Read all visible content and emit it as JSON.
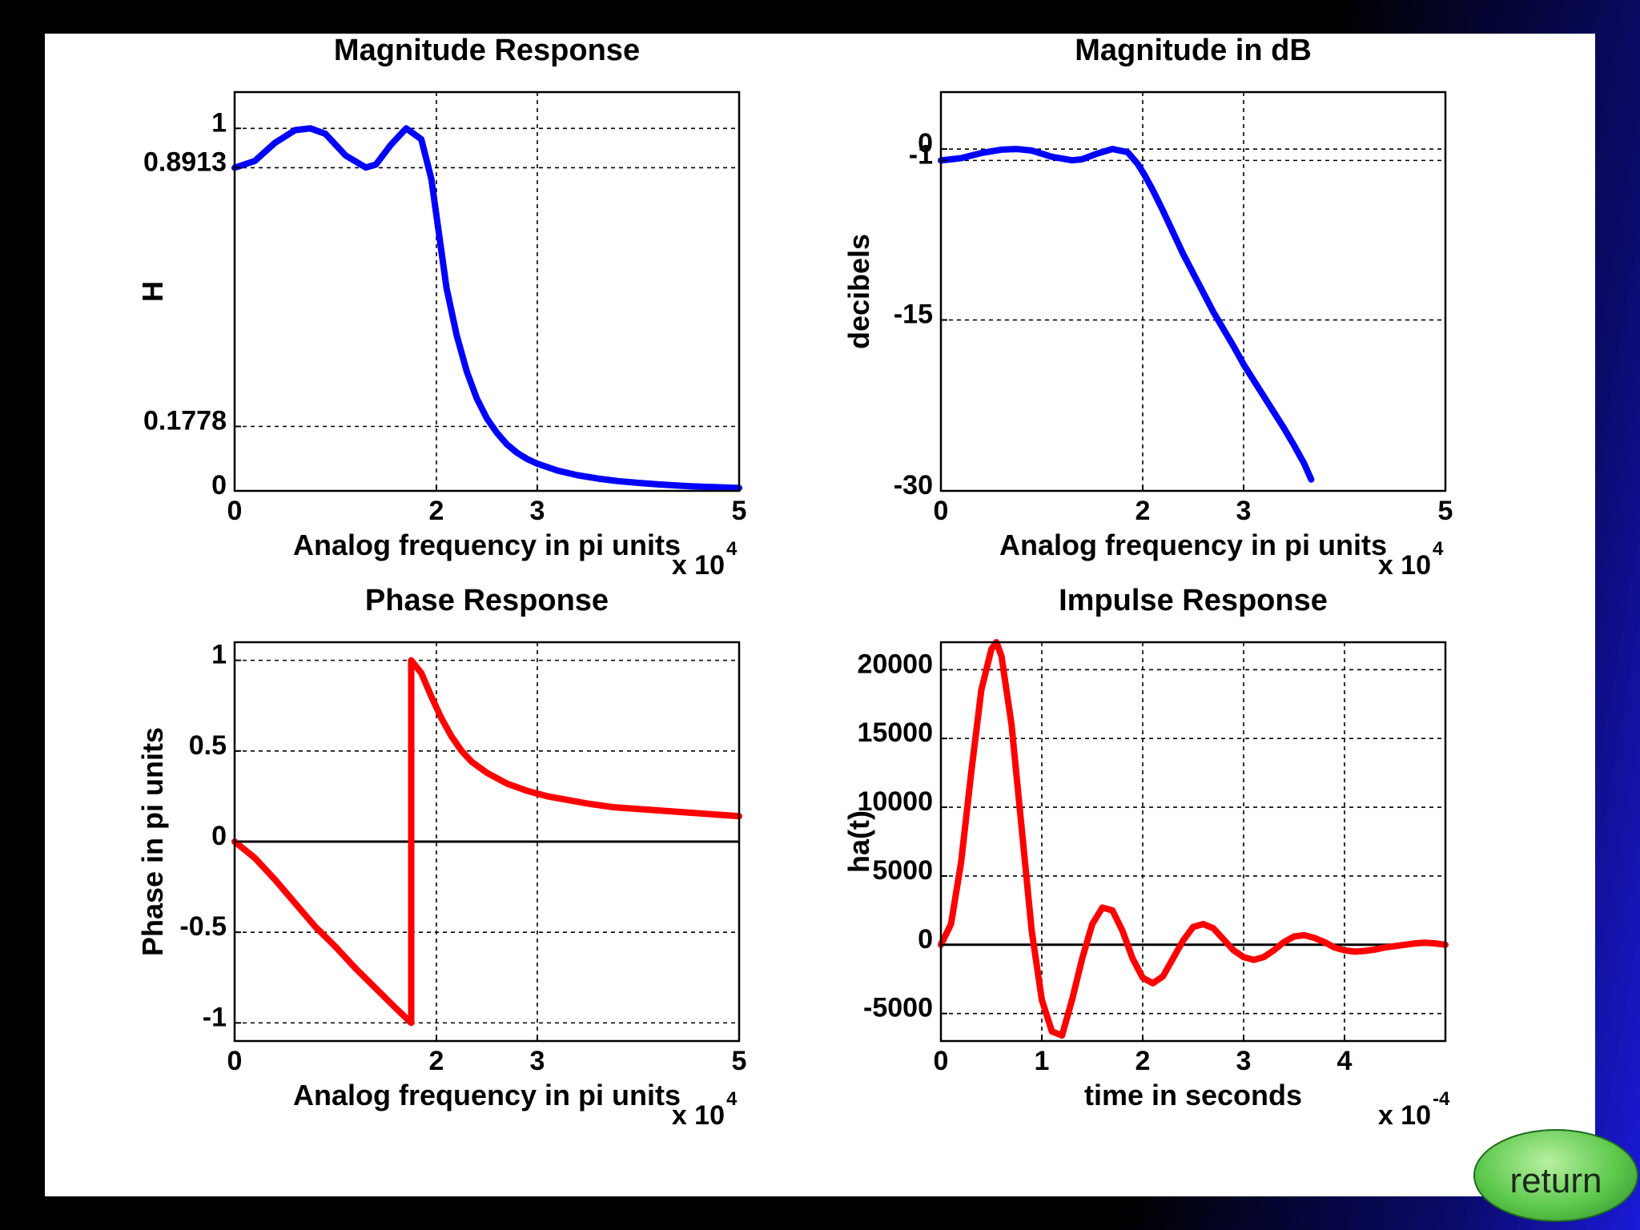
{
  "return_label": "return",
  "chart_data": [
    {
      "type": "line",
      "title": "Magnitude Response",
      "xlabel": "Analog frequency in pi units",
      "ylabel": "H",
      "x_multiplier": "x 10",
      "x_multiplier_exp": "4",
      "xlim": [
        0,
        50000
      ],
      "ylim": [
        0,
        1.1
      ],
      "xticks": [
        {
          "v": 0,
          "label": "0"
        },
        {
          "v": 20000,
          "label": "2"
        },
        {
          "v": 30000,
          "label": "3"
        },
        {
          "v": 50000,
          "label": "5"
        }
      ],
      "yticks": [
        {
          "v": 0,
          "label": "0"
        },
        {
          "v": 0.1778,
          "label": "0.1778"
        },
        {
          "v": 0.8913,
          "label": "0.8913"
        },
        {
          "v": 1,
          "label": "1"
        }
      ],
      "grid": true,
      "series": [
        {
          "color": "#0000ff",
          "x": [
            0,
            2000,
            4000,
            6000,
            7500,
            9000,
            11000,
            13000,
            14000,
            15500,
            17000,
            18500,
            19500,
            20200,
            21000,
            22000,
            23000,
            24000,
            25000,
            26000,
            27000,
            28000,
            29000,
            30000,
            32000,
            34000,
            36000,
            38000,
            40000,
            42000,
            45000,
            48000,
            50000
          ],
          "y": [
            0.8913,
            0.91,
            0.96,
            0.995,
            1.0,
            0.985,
            0.925,
            0.892,
            0.9,
            0.955,
            1.0,
            0.97,
            0.86,
            0.72,
            0.56,
            0.43,
            0.33,
            0.255,
            0.2,
            0.16,
            0.128,
            0.105,
            0.088,
            0.075,
            0.056,
            0.043,
            0.034,
            0.027,
            0.022,
            0.018,
            0.013,
            0.01,
            0.008
          ]
        }
      ]
    },
    {
      "type": "line",
      "title": "Magnitude in dB",
      "xlabel": "Analog frequency in pi units",
      "ylabel": "decibels",
      "x_multiplier": "x 10",
      "x_multiplier_exp": "4",
      "xlim": [
        0,
        50000
      ],
      "ylim": [
        -30,
        5
      ],
      "xticks": [
        {
          "v": 0,
          "label": "0"
        },
        {
          "v": 20000,
          "label": "2"
        },
        {
          "v": 30000,
          "label": "3"
        },
        {
          "v": 50000,
          "label": "5"
        }
      ],
      "yticks": [
        {
          "v": -30,
          "label": "-30"
        },
        {
          "v": -15,
          "label": "-15"
        },
        {
          "v": -1,
          "label": "-1"
        },
        {
          "v": 0,
          "label": "0"
        }
      ],
      "grid": true,
      "series": [
        {
          "color": "#0000ff",
          "x": [
            0,
            2000,
            4000,
            6000,
            7500,
            9000,
            11000,
            13000,
            14000,
            15500,
            17000,
            18500,
            19500,
            20200,
            21000,
            22000,
            23000,
            24000,
            25000,
            26000,
            27000,
            28000,
            29000,
            30000,
            31000,
            32000,
            33000,
            34000,
            35000,
            36000,
            36700
          ],
          "y": [
            -1,
            -0.8,
            -0.35,
            -0.05,
            0,
            -0.13,
            -0.68,
            -0.99,
            -0.9,
            -0.4,
            0,
            -0.27,
            -1.3,
            -2.3,
            -3.6,
            -5.4,
            -7.3,
            -9.2,
            -10.9,
            -12.6,
            -14.3,
            -15.8,
            -17.3,
            -18.9,
            -20.3,
            -21.7,
            -23.1,
            -24.5,
            -26.0,
            -27.6,
            -29.0
          ]
        }
      ]
    },
    {
      "type": "line",
      "title": "Phase Response",
      "xlabel": "Analog frequency in pi units",
      "ylabel": "Phase in pi units",
      "x_multiplier": "x 10",
      "x_multiplier_exp": "4",
      "xlim": [
        0,
        50000
      ],
      "ylim": [
        -1.1,
        1.1
      ],
      "xticks": [
        {
          "v": 0,
          "label": "0"
        },
        {
          "v": 20000,
          "label": "2"
        },
        {
          "v": 30000,
          "label": "3"
        },
        {
          "v": 50000,
          "label": "5"
        }
      ],
      "yticks": [
        {
          "v": -1,
          "label": "-1"
        },
        {
          "v": -0.5,
          "label": "-0.5"
        },
        {
          "v": 0,
          "label": "0"
        },
        {
          "v": 0.5,
          "label": "0.5"
        },
        {
          "v": 1,
          "label": "1"
        }
      ],
      "grid": true,
      "zero_line": true,
      "series": [
        {
          "color": "#ff0000",
          "x": [
            0,
            2000,
            4000,
            6000,
            8000,
            10000,
            12000,
            14000,
            16000,
            17500,
            17500,
            18500,
            19500,
            20500,
            21500,
            22500,
            23500,
            25000,
            27000,
            29000,
            31000,
            33000,
            35000,
            37500,
            40000,
            42500,
            45000,
            47500,
            50000
          ],
          "y": [
            0,
            -0.09,
            -0.21,
            -0.34,
            -0.47,
            -0.58,
            -0.7,
            -0.81,
            -0.92,
            -1.0,
            1.0,
            0.93,
            0.8,
            0.68,
            0.58,
            0.5,
            0.44,
            0.38,
            0.32,
            0.28,
            0.25,
            0.23,
            0.21,
            0.19,
            0.18,
            0.17,
            0.16,
            0.15,
            0.14
          ]
        }
      ]
    },
    {
      "type": "line",
      "title": "Impulse Response",
      "xlabel": "time in seconds",
      "ylabel": "ha(t)",
      "x_multiplier": "x 10",
      "x_multiplier_exp": "-4",
      "xlim": [
        0,
        0.0005
      ],
      "ylim": [
        -7000,
        22000
      ],
      "xticks": [
        {
          "v": 0,
          "label": "0"
        },
        {
          "v": 0.0001,
          "label": "1"
        },
        {
          "v": 0.0002,
          "label": "2"
        },
        {
          "v": 0.0003,
          "label": "3"
        },
        {
          "v": 0.0004,
          "label": "4"
        }
      ],
      "yticks": [
        {
          "v": -5000,
          "label": "-5000"
        },
        {
          "v": 0,
          "label": "0"
        },
        {
          "v": 5000,
          "label": "5000"
        },
        {
          "v": 10000,
          "label": "10000"
        },
        {
          "v": 15000,
          "label": "15000"
        },
        {
          "v": 20000,
          "label": "20000"
        }
      ],
      "grid": true,
      "zero_line": true,
      "series": [
        {
          "color": "#ff0000",
          "x": [
            0,
            1e-05,
            2e-05,
            3e-05,
            4e-05,
            5e-05,
            5.5e-05,
            6e-05,
            7e-05,
            8e-05,
            9e-05,
            0.0001,
            0.00011,
            0.00012,
            0.00013,
            0.00014,
            0.00015,
            0.00016,
            0.00017,
            0.00018,
            0.00019,
            0.0002,
            0.00021,
            0.00022,
            0.00023,
            0.00024,
            0.00025,
            0.00026,
            0.00027,
            0.00028,
            0.00029,
            0.0003,
            0.00031,
            0.00032,
            0.00033,
            0.00034,
            0.00035,
            0.00036,
            0.00037,
            0.00038,
            0.00039,
            0.0004,
            0.00041,
            0.00042,
            0.00043,
            0.00044,
            0.00045,
            0.00046,
            0.00047,
            0.00048,
            0.00049,
            0.0005
          ],
          "y": [
            0,
            1500,
            6000,
            12500,
            18500,
            21500,
            22000,
            21000,
            16000,
            8500,
            1000,
            -4000,
            -6300,
            -6600,
            -4000,
            -1000,
            1500,
            2700,
            2500,
            1000,
            -1000,
            -2400,
            -2800,
            -2300,
            -1000,
            300,
            1300,
            1500,
            1200,
            400,
            -400,
            -900,
            -1100,
            -900,
            -400,
            200,
            600,
            700,
            500,
            200,
            -200,
            -400,
            -500,
            -450,
            -350,
            -200,
            -100,
            0,
            100,
            150,
            100,
            0
          ]
        }
      ]
    }
  ]
}
